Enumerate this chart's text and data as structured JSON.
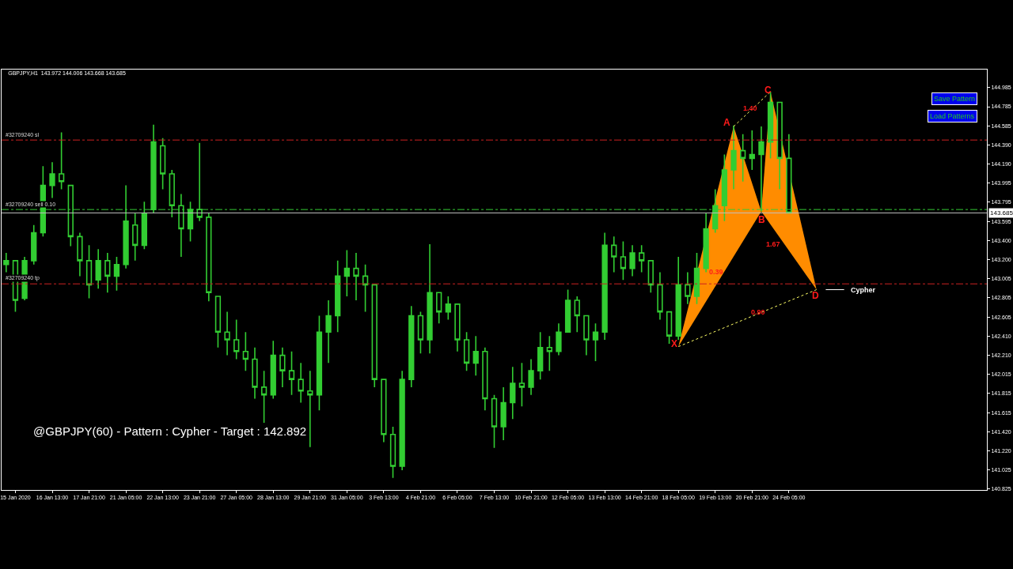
{
  "chart_data": {
    "type": "candlestick",
    "title": "GBPJPY,H1  143.972 144.006 143.668 143.685",
    "color": "#32cd32",
    "categories": [
      null,
      "15 Jan 2020",
      null,
      null,
      null,
      "16 Jan 13:00",
      null,
      null,
      null,
      "17 Jan 21:00",
      null,
      null,
      null,
      "21 Jan 05:00",
      null,
      null,
      null,
      "22 Jan 13:00",
      null,
      null,
      null,
      "23 Jan 21:00",
      null,
      null,
      null,
      "27 Jan 05:00",
      null,
      null,
      null,
      "28 Jan 13:00",
      null,
      null,
      null,
      "29 Jan 21:00",
      null,
      null,
      null,
      "31 Jan 05:00",
      null,
      null,
      null,
      "3 Feb 13:00",
      null,
      null,
      null,
      "4 Feb 21:00",
      null,
      null,
      null,
      "6 Feb 05:00",
      null,
      null,
      null,
      "7 Feb 13:00",
      null,
      null,
      null,
      "10 Feb 21:00",
      null,
      null,
      null,
      "12 Feb 05:00",
      null,
      null,
      null,
      "13 Feb 13:00",
      null,
      null,
      null,
      "14 Feb 21:00",
      null,
      null,
      null,
      "18 Feb 05:00",
      null,
      null,
      null,
      "19 Feb 13:00",
      null,
      null,
      null,
      "20 Feb 21:00",
      null,
      null,
      null,
      "24 Feb 05:00",
      null,
      null,
      null,
      null,
      null,
      null,
      null,
      null,
      null,
      null,
      null,
      null,
      null,
      null,
      null,
      null,
      null,
      null,
      null,
      null,
      null
    ],
    "ohlc": [
      [
        143.15,
        143.27,
        143.07,
        143.19
      ],
      [
        143.19,
        143.19,
        142.66,
        142.78
      ],
      [
        142.8,
        143.23,
        142.78,
        143.19
      ],
      [
        143.19,
        143.56,
        143.15,
        143.48
      ],
      [
        143.48,
        144.17,
        143.44,
        143.97
      ],
      [
        143.97,
        144.21,
        143.84,
        144.09
      ],
      [
        144.09,
        144.52,
        143.93,
        144.01
      ],
      [
        143.97,
        143.97,
        143.34,
        143.44
      ],
      [
        143.44,
        143.48,
        143.03,
        143.19
      ],
      [
        143.19,
        143.35,
        142.8,
        142.94
      ],
      [
        142.99,
        143.31,
        142.9,
        143.19
      ],
      [
        143.19,
        143.27,
        142.86,
        143.03
      ],
      [
        143.03,
        143.23,
        142.88,
        143.15
      ],
      [
        143.15,
        143.97,
        143.11,
        143.6
      ],
      [
        143.56,
        143.68,
        143.19,
        143.35
      ],
      [
        143.35,
        143.8,
        143.31,
        143.68
      ],
      [
        143.72,
        144.6,
        143.68,
        144.42
      ],
      [
        144.38,
        144.46,
        143.93,
        144.09
      ],
      [
        144.09,
        144.13,
        143.64,
        143.76
      ],
      [
        143.76,
        143.88,
        143.23,
        143.52
      ],
      [
        143.52,
        143.8,
        143.39,
        143.72
      ],
      [
        143.72,
        144.41,
        143.6,
        143.64
      ],
      [
        143.64,
        143.68,
        142.77,
        142.86
      ],
      [
        142.82,
        142.82,
        142.29,
        142.45
      ],
      [
        142.45,
        142.66,
        142.21,
        142.37
      ],
      [
        142.37,
        142.58,
        142.17,
        142.25
      ],
      [
        142.25,
        142.45,
        142.05,
        142.17
      ],
      [
        142.17,
        142.29,
        141.76,
        141.88
      ],
      [
        141.88,
        142.05,
        141.51,
        141.8
      ],
      [
        141.8,
        142.36,
        141.76,
        142.21
      ],
      [
        142.21,
        142.29,
        141.88,
        142.05
      ],
      [
        142.05,
        142.25,
        141.8,
        141.96
      ],
      [
        141.96,
        142.13,
        141.72,
        141.84
      ],
      [
        141.84,
        142.05,
        141.26,
        141.8
      ],
      [
        141.8,
        142.62,
        141.64,
        142.45
      ],
      [
        142.45,
        142.78,
        142.13,
        142.62
      ],
      [
        142.62,
        143.19,
        142.45,
        143.03
      ],
      [
        143.03,
        143.3,
        142.82,
        143.11
      ],
      [
        143.11,
        143.27,
        142.78,
        143.03
      ],
      [
        143.03,
        143.15,
        142.66,
        142.94
      ],
      [
        142.94,
        142.94,
        141.88,
        141.96
      ],
      [
        141.96,
        141.96,
        141.31,
        141.39
      ],
      [
        141.39,
        141.47,
        140.94,
        141.06
      ],
      [
        141.06,
        142.05,
        141.02,
        141.96
      ],
      [
        141.96,
        142.72,
        141.88,
        142.62
      ],
      [
        142.62,
        142.66,
        142.23,
        142.37
      ],
      [
        142.37,
        143.36,
        142.23,
        142.86
      ],
      [
        142.86,
        142.86,
        142.54,
        142.66
      ],
      [
        142.66,
        142.82,
        142.58,
        142.74
      ],
      [
        142.74,
        142.74,
        142.25,
        142.37
      ],
      [
        142.37,
        142.45,
        142.05,
        142.13
      ],
      [
        142.13,
        142.41,
        142.0,
        142.25
      ],
      [
        142.25,
        142.29,
        141.64,
        141.76
      ],
      [
        141.76,
        141.8,
        141.25,
        141.47
      ],
      [
        141.47,
        141.88,
        141.33,
        141.72
      ],
      [
        141.72,
        142.09,
        141.55,
        141.92
      ],
      [
        141.92,
        142.13,
        141.68,
        141.88
      ],
      [
        141.88,
        142.17,
        141.8,
        142.05
      ],
      [
        142.05,
        142.45,
        141.96,
        142.29
      ],
      [
        142.29,
        142.41,
        142.05,
        142.25
      ],
      [
        142.25,
        142.54,
        142.21,
        142.45
      ],
      [
        142.45,
        142.89,
        142.45,
        142.78
      ],
      [
        142.78,
        142.82,
        142.45,
        142.62
      ],
      [
        142.62,
        142.62,
        142.21,
        142.37
      ],
      [
        142.37,
        142.54,
        142.15,
        142.45
      ],
      [
        142.45,
        143.48,
        142.37,
        143.35
      ],
      [
        143.35,
        143.44,
        143.07,
        143.23
      ],
      [
        143.23,
        143.39,
        142.99,
        143.11
      ],
      [
        143.11,
        143.35,
        143.03,
        143.27
      ],
      [
        143.27,
        143.35,
        143.07,
        143.19
      ],
      [
        143.19,
        143.19,
        142.86,
        142.94
      ],
      [
        142.94,
        143.07,
        142.58,
        142.66
      ],
      [
        142.66,
        142.66,
        142.33,
        142.41
      ],
      [
        142.41,
        143.23,
        142.37,
        142.94
      ],
      [
        142.94,
        143.07,
        142.74,
        142.82
      ],
      [
        142.82,
        143.27,
        142.74,
        143.11
      ],
      [
        143.11,
        143.68,
        143.07,
        143.52
      ],
      [
        143.52,
        143.93,
        143.48,
        143.76
      ],
      [
        143.76,
        144.29,
        143.6,
        144.13
      ],
      [
        144.13,
        144.59,
        143.93,
        144.33
      ],
      [
        144.33,
        144.5,
        144.01,
        144.25
      ],
      [
        144.25,
        144.54,
        144.13,
        144.29
      ],
      [
        144.29,
        144.58,
        143.7,
        144.42
      ],
      [
        144.42,
        144.94,
        144.25,
        144.83
      ],
      [
        144.83,
        144.83,
        143.93,
        144.25
      ],
      [
        144.25,
        144.5,
        143.68,
        143.685
      ],
      null,
      null,
      null,
      null,
      null,
      null,
      null,
      null,
      null,
      null,
      null,
      null,
      null,
      null,
      null,
      null,
      null,
      null,
      null,
      null,
      null
    ],
    "series": [
      {
        "type": "area",
        "color": "#ff8c00",
        "values": [
          null,
          null,
          null,
          null,
          null,
          null,
          null,
          null,
          null,
          null,
          null,
          null,
          null,
          null,
          null,
          null,
          null,
          null,
          null,
          null,
          null,
          null,
          null,
          null,
          null,
          null,
          null,
          null,
          null,
          null,
          null,
          null,
          null,
          null,
          null,
          null,
          null,
          null,
          null,
          null,
          null,
          null,
          null,
          null,
          null,
          null,
          null,
          null,
          null,
          null,
          null,
          null,
          null,
          null,
          null,
          null,
          null,
          null,
          null,
          null,
          null,
          null,
          null,
          null,
          null,
          null,
          null,
          null,
          null,
          null,
          null,
          null,
          null,
          142.3,
          null,
          null,
          null,
          null,
          null,
          144.58,
          null,
          null,
          143.7,
          null,
          null,
          null,
          null,
          null,
          null,
          null,
          null,
          null,
          null,
          null,
          null,
          null,
          null,
          null,
          null,
          null,
          null,
          null,
          null,
          null,
          null,
          null,
          null
        ]
      },
      {
        "type": "area",
        "color": "#ff8c00",
        "values": [
          null,
          null,
          null,
          null,
          null,
          null,
          null,
          null,
          null,
          null,
          null,
          null,
          null,
          null,
          null,
          null,
          null,
          null,
          null,
          null,
          null,
          null,
          null,
          null,
          null,
          null,
          null,
          null,
          null,
          null,
          null,
          null,
          null,
          null,
          null,
          null,
          null,
          null,
          null,
          null,
          null,
          null,
          null,
          null,
          null,
          null,
          null,
          null,
          null,
          null,
          null,
          null,
          null,
          null,
          null,
          null,
          null,
          null,
          null,
          null,
          null,
          null,
          null,
          null,
          null,
          null,
          null,
          null,
          null,
          null,
          null,
          null,
          null,
          null,
          null,
          null,
          null,
          null,
          null,
          null,
          null,
          null,
          143.7,
          144.94,
          null,
          null,
          null,
          null,
          142.89,
          null,
          null,
          null,
          null,
          null,
          null,
          null,
          null,
          null,
          null,
          null,
          null,
          null,
          null,
          null,
          null,
          null,
          null
        ]
      },
      {
        "type": "line",
        "color": "#ffff66",
        "line_style": "dotted",
        "values": [
          null,
          null,
          null,
          null,
          null,
          null,
          null,
          null,
          null,
          null,
          null,
          null,
          null,
          null,
          null,
          null,
          null,
          null,
          null,
          null,
          null,
          null,
          null,
          null,
          null,
          null,
          null,
          null,
          null,
          null,
          null,
          null,
          null,
          null,
          null,
          null,
          null,
          null,
          null,
          null,
          null,
          null,
          null,
          null,
          null,
          null,
          null,
          null,
          null,
          null,
          null,
          null,
          null,
          null,
          null,
          null,
          null,
          null,
          null,
          null,
          null,
          null,
          null,
          null,
          null,
          null,
          null,
          null,
          null,
          null,
          null,
          null,
          null,
          142.3,
          null,
          null,
          null,
          null,
          null,
          null,
          null,
          null,
          null,
          null,
          null,
          null,
          null,
          null,
          142.89,
          null,
          null,
          null,
          null,
          null,
          null,
          null,
          null,
          null,
          null,
          null,
          null,
          null,
          null,
          null,
          null,
          null,
          null
        ]
      },
      {
        "type": "line",
        "color": "#ffff66",
        "line_style": "dotted",
        "values": [
          null,
          null,
          null,
          null,
          null,
          null,
          null,
          null,
          null,
          null,
          null,
          null,
          null,
          null,
          null,
          null,
          null,
          null,
          null,
          null,
          null,
          null,
          null,
          null,
          null,
          null,
          null,
          null,
          null,
          null,
          null,
          null,
          null,
          null,
          null,
          null,
          null,
          null,
          null,
          null,
          null,
          null,
          null,
          null,
          null,
          null,
          null,
          null,
          null,
          null,
          null,
          null,
          null,
          null,
          null,
          null,
          null,
          null,
          null,
          null,
          null,
          null,
          null,
          null,
          null,
          null,
          null,
          null,
          null,
          null,
          null,
          null,
          null,
          null,
          null,
          null,
          null,
          null,
          null,
          144.58,
          null,
          null,
          null,
          144.94,
          null,
          null,
          null,
          null,
          null,
          null,
          null,
          null,
          null,
          null,
          null,
          null,
          null,
          null,
          null,
          null,
          null,
          null,
          null,
          null,
          null,
          null,
          null
        ]
      },
      {
        "type": "line",
        "name": "Cypher",
        "color": "#ffffff",
        "line_style": "solid",
        "values": [
          null,
          null,
          null,
          null,
          null,
          null,
          null,
          null,
          null,
          null,
          null,
          null,
          null,
          null,
          null,
          null,
          null,
          null,
          null,
          null,
          null,
          null,
          null,
          null,
          null,
          null,
          null,
          null,
          null,
          null,
          null,
          null,
          null,
          null,
          null,
          null,
          null,
          null,
          null,
          null,
          null,
          null,
          null,
          null,
          null,
          null,
          null,
          null,
          null,
          null,
          null,
          null,
          null,
          null,
          null,
          null,
          null,
          null,
          null,
          null,
          null,
          null,
          null,
          null,
          null,
          null,
          null,
          null,
          null,
          null,
          null,
          null,
          null,
          null,
          null,
          null,
          null,
          null,
          null,
          null,
          null,
          null,
          null,
          null,
          null,
          null,
          null,
          null,
          null,
          142.89,
          142.89,
          142.89,
          null,
          null,
          null,
          null,
          null,
          null,
          null,
          null,
          null,
          null,
          null,
          null,
          null,
          null,
          null
        ]
      }
    ],
    "ref_lines": [
      {
        "axis": "y",
        "value": 144.44,
        "label": "#32709240 sl",
        "color": "#cc2222",
        "line_style": "dashed"
      },
      {
        "axis": "y",
        "value": 143.72,
        "label": "#32709240 sell 0.10",
        "color": "#33cc33",
        "line_style": "dashed"
      },
      {
        "axis": "y",
        "value": 143.685,
        "label": "143.685",
        "color": "#c0c0c0",
        "line_style": "solid"
      },
      {
        "axis": "y",
        "value": 142.95,
        "label": "#32709240 tp",
        "color": "#cc2222",
        "line_style": "dashed"
      }
    ],
    "annotations": [
      "@GBPJPY(60) - Pattern : Cypher - Target : 142.892",
      "Save Pattern",
      "Load Patterns",
      "X",
      "A",
      "B",
      "C",
      "D",
      "1.40",
      "0.39",
      "1.67",
      "0.90"
    ],
    "ylim": [
      140.815,
      145.17
    ],
    "yticks": [
      144.985,
      144.785,
      144.585,
      {
        "value": 144.39,
        "label": "144.390"
      },
      {
        "value": 144.19,
        "label": "144.190"
      },
      143.995,
      143.795,
      143.595,
      {
        "value": 143.4,
        "label": "143.400"
      },
      {
        "value": 143.2,
        "label": "143.200"
      },
      143.005,
      142.805,
      142.605,
      {
        "value": 142.41,
        "label": "142.410"
      },
      {
        "value": 142.21,
        "label": "142.210"
      },
      142.015,
      141.815,
      141.615,
      {
        "value": 141.42,
        "label": "141.420"
      },
      {
        "value": 141.22,
        "label": "141.220"
      },
      141.025,
      140.825
    ],
    "grid": false
  }
}
